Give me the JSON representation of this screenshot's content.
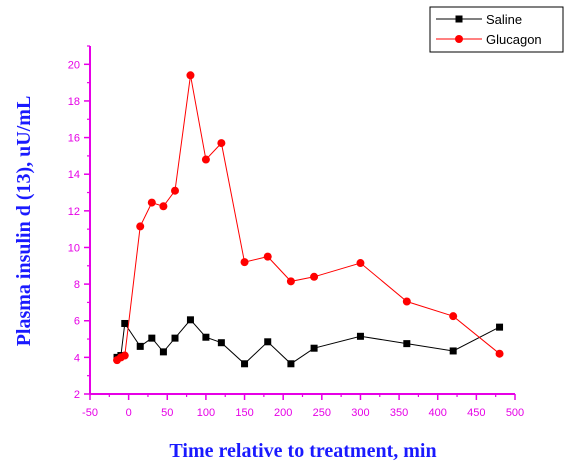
{
  "chart_data": {
    "type": "line",
    "xlabel": "Time relative to treatment, min",
    "ylabel": "Plasma insulin d (13),  uU/mL",
    "xlim": [
      -50,
      500
    ],
    "ylim": [
      2,
      21
    ],
    "x_ticks": [
      -50,
      0,
      50,
      100,
      150,
      200,
      250,
      300,
      350,
      400,
      450,
      500
    ],
    "y_ticks": [
      2,
      4,
      6,
      8,
      10,
      12,
      14,
      16,
      18,
      20
    ],
    "grid": false,
    "legend_position": "top-right",
    "series": [
      {
        "name": "Saline",
        "color": "#000000",
        "marker": "square",
        "x": [
          -15,
          -10,
          -5,
          15,
          30,
          45,
          60,
          80,
          100,
          120,
          150,
          180,
          210,
          240,
          300,
          360,
          420,
          480
        ],
        "y": [
          4.0,
          4.1,
          5.85,
          4.6,
          5.05,
          4.3,
          5.05,
          6.05,
          5.1,
          4.8,
          3.65,
          4.85,
          3.65,
          4.5,
          5.15,
          4.75,
          4.35,
          5.65
        ]
      },
      {
        "name": "Glucagon",
        "color": "#ff0000",
        "marker": "circle",
        "x": [
          -15,
          -10,
          -5,
          15,
          30,
          45,
          60,
          80,
          100,
          120,
          150,
          180,
          210,
          240,
          300,
          360,
          420,
          480
        ],
        "y": [
          3.85,
          4.0,
          4.1,
          11.15,
          12.45,
          12.25,
          13.1,
          19.4,
          14.8,
          15.7,
          9.2,
          9.5,
          8.15,
          8.4,
          9.15,
          7.05,
          6.25,
          4.2
        ]
      }
    ]
  },
  "colors": {
    "axis": "#e600e6",
    "title": "#1a1aff"
  }
}
